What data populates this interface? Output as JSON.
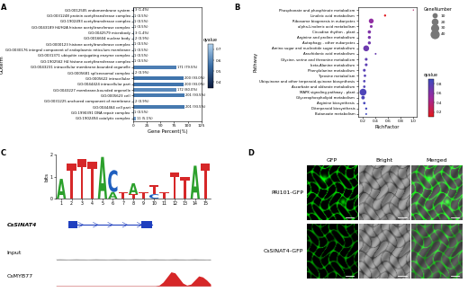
{
  "chart_data": [
    {
      "type": "bar",
      "orientation": "horizontal",
      "xlabel": "Gene Percent(%)",
      "ylabel": "GOterm",
      "categories": [
        "GO:0012505 endomembrane system",
        "GO:0031248 protein acetyltransferase complex",
        "GO:1902493 acetyltransferase complex",
        "GO:0043189 H4/H2A histone acetyltransferase complex",
        "GO:0042579 microbody",
        "GO:0016604 nuclear body",
        "GO:0000123 histone acetyltransferase complex",
        "GO:0030176 integral component of endoplasmic reticulum membrane",
        "GO:0031371 ubiquitin conjugating enzyme complex",
        "GO:1902562 H4 histone acetyltransferase complex",
        "GO:0043231 intracellular membrane-bounded organelle",
        "GO:0005681 spliceosomal complex",
        "GO:0005622 intracellular",
        "GO:0044424 intracellular part",
        "GO:0043227 membrane-bounded organelle",
        "GO:0005623 cell",
        "GO:0031225 anchored component of membrane",
        "GO:0044464 cell part",
        "GO:1990391 DNA repair complex",
        "GO:1902494 catalytic complex"
      ],
      "values": [
        1.4,
        0.5,
        0.5,
        0.5,
        1.4,
        0.9,
        0.5,
        0.5,
        0.5,
        0.5,
        79.5,
        0.9,
        93.0,
        93.0,
        80.0,
        93.5,
        0.9,
        93.5,
        0.5,
        5.1
      ],
      "value_labels": [
        "3 (1.4%)",
        "1 (0.5%)",
        "1 (0.5%)",
        "1 (0.5%)",
        "3 (1.4%)",
        "2 (0.9%)",
        "1 (0.5%)",
        "1 (0.5%)",
        "1 (0.5%)",
        "1 (0.5%)",
        "171 (79.5%)",
        "2 (0.9%)",
        "200 (93.0%)",
        "200 (93.0%)",
        "172 (80.0%)",
        "201 (93.5%)",
        "2 (0.9%)",
        "201 (93.5%)",
        "1 (0.5%)",
        "11 (5.1%)"
      ],
      "qvalues": [
        0.38,
        0.72,
        0.72,
        0.72,
        0.66,
        0.7,
        0.72,
        0.72,
        0.72,
        0.72,
        0.58,
        0.7,
        0.56,
        0.56,
        0.6,
        0.57,
        0.7,
        0.57,
        0.72,
        0.64
      ],
      "colorbar": {
        "title": "qvalue",
        "lim": [
          0.35,
          0.75
        ],
        "ticks": [
          0.4,
          0.5,
          0.6,
          0.7
        ]
      },
      "xlim": [
        0,
        125
      ],
      "xticks": [
        0,
        25,
        50,
        75,
        100,
        125
      ],
      "data_labels": true
    },
    {
      "type": "scatter",
      "xlabel": "RichFactor",
      "ylabel": "Pathway",
      "categories": [
        "Phosphonate and phosphinate metabolism",
        "Linoleic acid metabolism",
        "Ribosome biogenesis in eukaryotes",
        "alpha-Linolenic acid metabolism",
        "Circadian rhythm - plant",
        "Arginine and proline metabolism",
        "Autophagy - other eukaryotes",
        "Amino sugar and nucleotide sugar metabolism",
        "Arachidonic acid metabolism",
        "Glycine, serine and threonine metabolism",
        "beta-Alanine metabolism",
        "Phenylalanine metabolism",
        "Tyrosine metabolism",
        "Ubiquinone and other terpenoid-quinone biosynthesis",
        "Ascorbate and aldarate metabolism",
        "MAPK signaling pathway - plant",
        "Glycerophospholipid metabolism",
        "Arginine biosynthesis",
        "Diterpenoid biosynthesis",
        "Butanoate metabolism"
      ],
      "values": [
        1.0,
        0.55,
        0.33,
        0.33,
        0.3,
        0.3,
        0.3,
        0.25,
        0.4,
        0.25,
        0.25,
        0.22,
        0.23,
        0.22,
        0.22,
        0.2,
        0.2,
        0.22,
        0.25,
        0.25
      ],
      "gene_numbers": [
        1,
        3,
        15,
        5,
        7,
        6,
        6,
        22,
        2,
        5,
        5,
        5,
        4,
        4,
        4,
        30,
        8,
        4,
        3,
        2
      ],
      "qvalues": [
        0.35,
        0.12,
        0.55,
        0.6,
        0.62,
        0.65,
        0.68,
        0.7,
        0.72,
        0.75,
        0.76,
        0.78,
        0.78,
        0.8,
        0.8,
        0.82,
        0.82,
        0.85,
        0.85,
        0.88
      ],
      "size_legend": {
        "title": "GeneNumber",
        "values": [
          10,
          20,
          30,
          40
        ]
      },
      "colorbar": {
        "title": "qvalue",
        "lim": [
          0.1,
          0.9
        ],
        "ticks": [
          0.2,
          0.4,
          0.6,
          0.8
        ]
      },
      "xlim": [
        0.12,
        1.05
      ],
      "xticks": [
        0.2,
        0.4,
        0.6,
        0.8,
        {
          "value": 1,
          "label": "1.0"
        }
      ]
    }
  ],
  "panel_labels": [
    "A",
    "B",
    "C",
    "D"
  ],
  "panel_c": {
    "logo": {
      "ylabel": "bits",
      "ylim": [
        0,
        2
      ],
      "yticks": [
        0,
        1,
        2
      ],
      "positions": [
        1,
        2,
        3,
        4,
        5,
        6,
        7,
        8,
        9,
        10,
        11,
        12,
        13,
        14,
        15
      ],
      "stacks": [
        [
          {
            "letter": "A",
            "height": 0.9
          }
        ],
        [
          {
            "letter": "T",
            "height": 1.6
          }
        ],
        [
          {
            "letter": "T",
            "height": 1.8
          }
        ],
        [
          {
            "letter": "T",
            "height": 1.7
          }
        ],
        [
          {
            "letter": "A",
            "height": 1.9
          }
        ],
        [
          {
            "letter": "A",
            "height": 0.3
          },
          {
            "letter": "C",
            "height": 1.0
          }
        ],
        [
          {
            "letter": "T",
            "height": 0.3
          }
        ],
        [
          {
            "letter": "T",
            "height": 0.2
          },
          {
            "letter": "A",
            "height": 0.5
          }
        ],
        [
          {
            "letter": "T",
            "height": 0.3
          }
        ],
        [
          {
            "letter": "C",
            "height": 0.2
          },
          {
            "letter": "T",
            "height": 0.4
          }
        ],
        [
          {
            "letter": "T",
            "height": 0.3
          }
        ],
        [
          {
            "letter": "T",
            "height": 1.2
          }
        ],
        [
          {
            "letter": "T",
            "height": 1.0
          }
        ],
        [
          {
            "letter": "A",
            "height": 1.5
          }
        ],
        [
          {
            "letter": "T",
            "height": 1.6
          }
        ]
      ]
    },
    "region": [
      0,
      100
    ],
    "gene": {
      "name": "CsSINAT4",
      "start": 8,
      "end": 62,
      "exons": [
        [
          8,
          14
        ],
        [
          55,
          62
        ]
      ]
    },
    "tracks": [
      {
        "name": "Input",
        "ylim": [
          0,
          1
        ],
        "signal": [
          0.05,
          0.06,
          0.05,
          0.04,
          0.05,
          0.06,
          0.05,
          0.05,
          0.04,
          0.05,
          0.06,
          0.05,
          0.05,
          0.04,
          0.05,
          0.06,
          0.05,
          0.05,
          0.04,
          0.05,
          0.06,
          0.05,
          0.05,
          0.04,
          0.05,
          0.06,
          0.05,
          0.05,
          0.04,
          0.05,
          0.06,
          0.05,
          0.05,
          0.04,
          0.05,
          0.06,
          0.05,
          0.05,
          0.04,
          0.05
        ]
      },
      {
        "name": "CsMYB77",
        "ylim": [
          0,
          1
        ],
        "signal": [
          0.02,
          0.02,
          0.02,
          0.02,
          0.02,
          0.02,
          0.02,
          0.02,
          0.02,
          0.02,
          0.02,
          0.02,
          0.02,
          0.02,
          0.02,
          0.02,
          0.02,
          0.02,
          0.02,
          0.02,
          0.02,
          0.02,
          0.02,
          0.02,
          0.02,
          0.02,
          0.05,
          0.2,
          0.45,
          0.7,
          0.65,
          0.4,
          0.15,
          0.05,
          0.1,
          0.3,
          0.5,
          0.45,
          0.3,
          0.1
        ]
      }
    ]
  },
  "panel_d": {
    "columns": [
      "GFP",
      "Bright",
      "Merged"
    ],
    "rows": [
      "PRI101-GFP",
      "CsSINAT4-GFP"
    ]
  }
}
